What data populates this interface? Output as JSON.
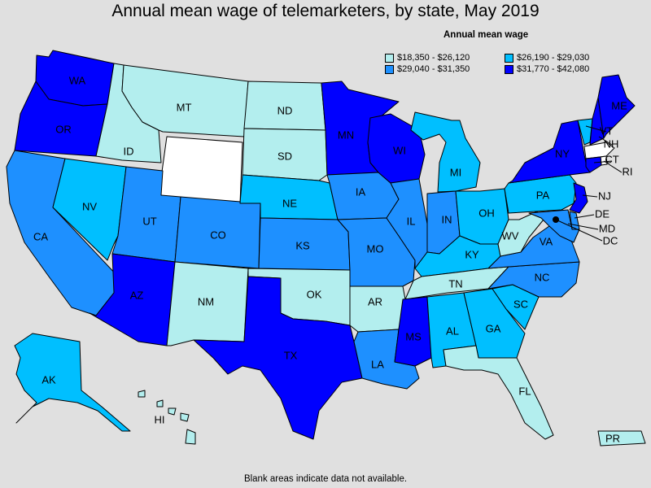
{
  "title": "Annual mean wage of telemarketers, by state, May 2019",
  "legend": {
    "title": "Annual mean wage",
    "items": [
      {
        "label": "$18,350 - $26,120",
        "color": "#b3eeee"
      },
      {
        "label": "$26,190 - $29,030",
        "color": "#00bfff"
      },
      {
        "label": "$29,040 - $31,350",
        "color": "#1e90ff"
      },
      {
        "label": "$31,770 - $42,080",
        "color": "#0000ff"
      }
    ]
  },
  "footnote": "Blank areas indicate data not available.",
  "colors": {
    "no_data": "#ffffff",
    "background": "#e0e0e0"
  },
  "states": [
    {
      "abbr": "WA",
      "tier": 3
    },
    {
      "abbr": "OR",
      "tier": 3
    },
    {
      "abbr": "CA",
      "tier": 2
    },
    {
      "abbr": "ID",
      "tier": 0
    },
    {
      "abbr": "NV",
      "tier": 1
    },
    {
      "abbr": "MT",
      "tier": 0
    },
    {
      "abbr": "WY",
      "tier": -1
    },
    {
      "abbr": "UT",
      "tier": 2
    },
    {
      "abbr": "AZ",
      "tier": 3
    },
    {
      "abbr": "CO",
      "tier": 2
    },
    {
      "abbr": "NM",
      "tier": 0
    },
    {
      "abbr": "ND",
      "tier": 0
    },
    {
      "abbr": "SD",
      "tier": 0
    },
    {
      "abbr": "NE",
      "tier": 1
    },
    {
      "abbr": "KS",
      "tier": 2
    },
    {
      "abbr": "OK",
      "tier": 0
    },
    {
      "abbr": "TX",
      "tier": 3
    },
    {
      "abbr": "MN",
      "tier": 3
    },
    {
      "abbr": "IA",
      "tier": 2
    },
    {
      "abbr": "MO",
      "tier": 2
    },
    {
      "abbr": "AR",
      "tier": 0
    },
    {
      "abbr": "LA",
      "tier": 2
    },
    {
      "abbr": "WI",
      "tier": 3
    },
    {
      "abbr": "IL",
      "tier": 2
    },
    {
      "abbr": "MI",
      "tier": 1
    },
    {
      "abbr": "IN",
      "tier": 2
    },
    {
      "abbr": "OH",
      "tier": 1
    },
    {
      "abbr": "KY",
      "tier": 1
    },
    {
      "abbr": "TN",
      "tier": 0
    },
    {
      "abbr": "MS",
      "tier": 3
    },
    {
      "abbr": "AL",
      "tier": 1
    },
    {
      "abbr": "GA",
      "tier": 1
    },
    {
      "abbr": "FL",
      "tier": 0
    },
    {
      "abbr": "SC",
      "tier": 1
    },
    {
      "abbr": "NC",
      "tier": 2
    },
    {
      "abbr": "VA",
      "tier": 2
    },
    {
      "abbr": "WV",
      "tier": 0
    },
    {
      "abbr": "PA",
      "tier": 1
    },
    {
      "abbr": "NY",
      "tier": 3
    },
    {
      "abbr": "ME",
      "tier": 3
    },
    {
      "abbr": "VT",
      "tier": 1
    },
    {
      "abbr": "NH",
      "tier": 3
    },
    {
      "abbr": "MA",
      "tier": -1
    },
    {
      "abbr": "RI",
      "tier": -1
    },
    {
      "abbr": "CT",
      "tier": 3
    },
    {
      "abbr": "NJ",
      "tier": 3
    },
    {
      "abbr": "DE",
      "tier": 2
    },
    {
      "abbr": "MD",
      "tier": 2
    },
    {
      "abbr": "DC",
      "tier": 3
    },
    {
      "abbr": "AK",
      "tier": 1
    },
    {
      "abbr": "HI",
      "tier": 0
    },
    {
      "abbr": "PR",
      "tier": 0
    }
  ]
}
